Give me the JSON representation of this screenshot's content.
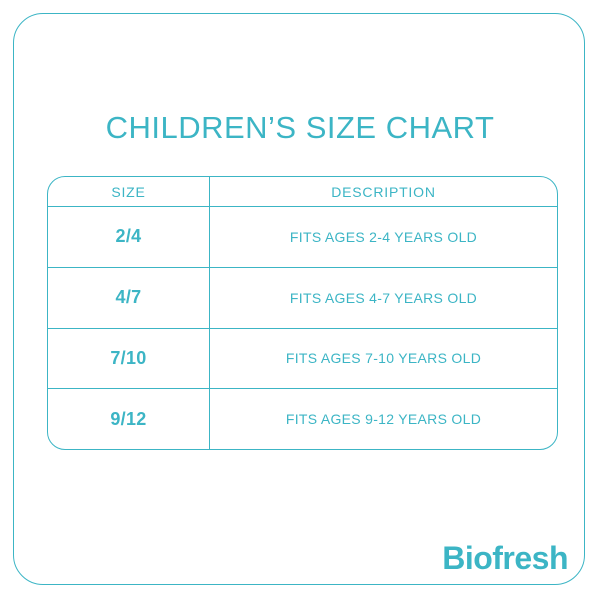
{
  "colors": {
    "accent": "#3cb5c5",
    "background": "#ffffff"
  },
  "chart_data": {
    "type": "table",
    "title": "CHILDREN’S SIZE CHART",
    "columns": [
      "SIZE",
      "DESCRIPTION"
    ],
    "rows": [
      [
        "2/4",
        "FITS AGES 2-4 YEARS OLD"
      ],
      [
        "4/7",
        "FITS AGES 4-7 YEARS OLD"
      ],
      [
        "7/10",
        "FITS AGES 7-10 YEARS OLD"
      ],
      [
        "9/12",
        "FITS AGES 9-12 YEARS OLD"
      ]
    ]
  },
  "brand": {
    "logo_text": "Biofresh"
  }
}
